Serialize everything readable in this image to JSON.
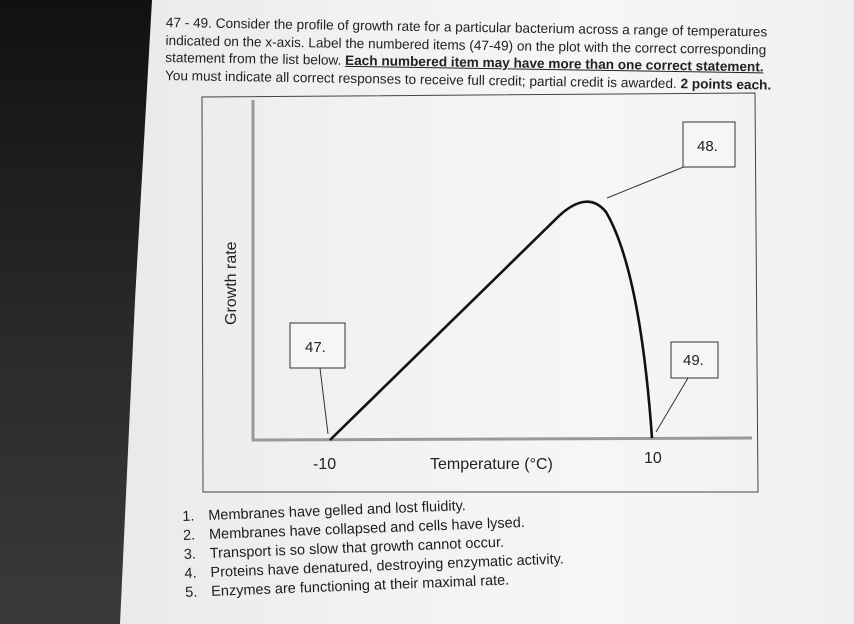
{
  "question": {
    "intro": "47 - 49. Consider the profile of growth rate for a particular bacterium across a range of temperatures indicated on the x-axis. Label the numbered items (47-49) on the plot with the correct corresponding statement from the list below.",
    "emphasis": "Each numbered item may have more than one correct statement.",
    "instructions": "You must indicate all correct responses to receive full credit; partial credit is awarded.",
    "points": "2 points each."
  },
  "figure": {
    "ylabel": "Growth rate",
    "xlabel": "Temperature (°C)",
    "tick_min": "-10",
    "tick_max": "10",
    "labels": [
      "47.",
      "48.",
      "49."
    ]
  },
  "statements": [
    {
      "number": "1.",
      "text": "Membranes have gelled and lost fluidity."
    },
    {
      "number": "2.",
      "text": "Membranes have collapsed and cells have lysed."
    },
    {
      "number": "3.",
      "text": "Transport is so slow that growth cannot occur."
    },
    {
      "number": "4.",
      "text": "Proteins have denatured, destroying enzymatic activity."
    },
    {
      "number": "5.",
      "text": "Enzymes are functioning at their maximal rate."
    }
  ]
}
